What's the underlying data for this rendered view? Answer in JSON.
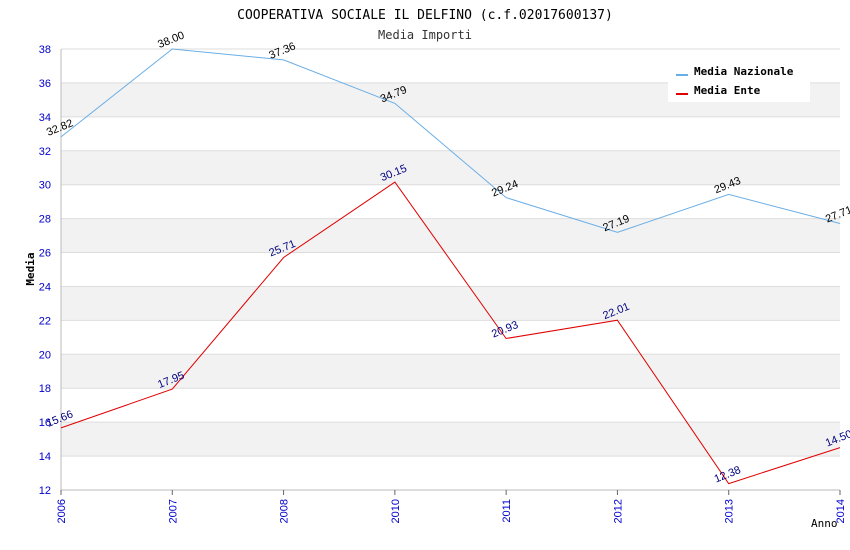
{
  "chart_data": {
    "type": "line",
    "title": "COOPERATIVA SOCIALE IL DELFINO (c.f.02017600137)",
    "subtitle": "Media Importi",
    "xlabel": "Anno",
    "ylabel": "Media",
    "ylim": [
      12,
      38
    ],
    "ytick_step": 2,
    "categories": [
      "2006",
      "2007",
      "2008",
      "2010",
      "2011",
      "2012",
      "2013",
      "2014"
    ],
    "grid": true,
    "legend_position": "top-right",
    "series": [
      {
        "name": "Media Nazionale",
        "color": "#6aaee6",
        "label_color": "#000000",
        "values": [
          32.82,
          38.0,
          37.36,
          34.79,
          29.24,
          27.19,
          29.43,
          27.71
        ],
        "labels": [
          "32.82",
          "38.00",
          "37.36",
          "34.79",
          "29.24",
          "27.19",
          "29.43",
          "27.71"
        ]
      },
      {
        "name": "Media Ente",
        "color": "#e00000",
        "label_color": "#000080",
        "values": [
          15.66,
          17.95,
          25.71,
          30.15,
          20.93,
          22.01,
          12.38,
          14.5
        ],
        "labels": [
          "15.66",
          "17.95",
          "25.71",
          "30.15",
          "20.93",
          "22.01",
          "12.38",
          "14.50"
        ]
      }
    ]
  }
}
